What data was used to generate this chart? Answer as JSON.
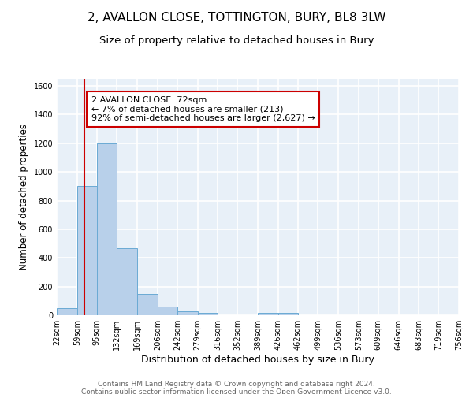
{
  "title": "2, AVALLON CLOSE, TOTTINGTON, BURY, BL8 3LW",
  "subtitle": "Size of property relative to detached houses in Bury",
  "xlabel": "Distribution of detached houses by size in Bury",
  "ylabel": "Number of detached properties",
  "bin_edges": [
    22,
    59,
    95,
    132,
    169,
    206,
    242,
    279,
    316,
    352,
    389,
    426,
    462,
    499,
    536,
    573,
    609,
    646,
    683,
    719,
    756
  ],
  "bar_heights": [
    50,
    900,
    1200,
    470,
    150,
    60,
    30,
    15,
    0,
    0,
    15,
    15,
    0,
    0,
    0,
    0,
    0,
    0,
    0,
    0
  ],
  "bar_color": "#b8d0ea",
  "bar_edge_color": "#6aaad4",
  "background_color": "#e8f0f8",
  "grid_color": "#ffffff",
  "property_line_x": 72,
  "property_line_color": "#cc0000",
  "annotation_text": "2 AVALLON CLOSE: 72sqm\n← 7% of detached houses are smaller (213)\n92% of semi-detached houses are larger (2,627) →",
  "annotation_box_color": "#ffffff",
  "annotation_box_edge": "#cc0000",
  "ylim": [
    0,
    1650
  ],
  "yticks": [
    0,
    200,
    400,
    600,
    800,
    1000,
    1200,
    1400,
    1600
  ],
  "footer_line1": "Contains HM Land Registry data © Crown copyright and database right 2024.",
  "footer_line2": "Contains public sector information licensed under the Open Government Licence v3.0.",
  "title_fontsize": 11,
  "subtitle_fontsize": 9.5,
  "xlabel_fontsize": 9,
  "ylabel_fontsize": 8.5,
  "tick_label_fontsize": 7,
  "annotation_fontsize": 8,
  "footer_fontsize": 6.5
}
